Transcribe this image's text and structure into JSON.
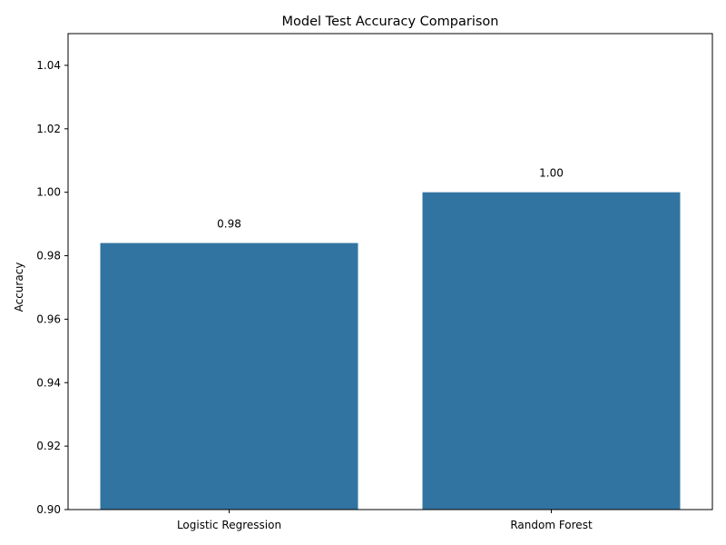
{
  "chart_data": {
    "type": "bar",
    "title": "Model Test Accuracy Comparison",
    "xlabel": "",
    "ylabel": "Accuracy",
    "categories": [
      "Logistic Regression",
      "Random Forest"
    ],
    "values": [
      0.984,
      1.0
    ],
    "data_labels": [
      "0.98",
      "1.00"
    ],
    "ylim": [
      0.9,
      1.05
    ],
    "yticks": [
      0.9,
      0.92,
      0.94,
      0.96,
      0.98,
      1.0,
      1.02,
      1.04
    ],
    "ytick_labels": [
      "0.90",
      "0.92",
      "0.94",
      "0.96",
      "0.98",
      "1.00",
      "1.02",
      "1.04"
    ],
    "bar_color": "#3274a1",
    "grid": false,
    "legend": "none"
  }
}
